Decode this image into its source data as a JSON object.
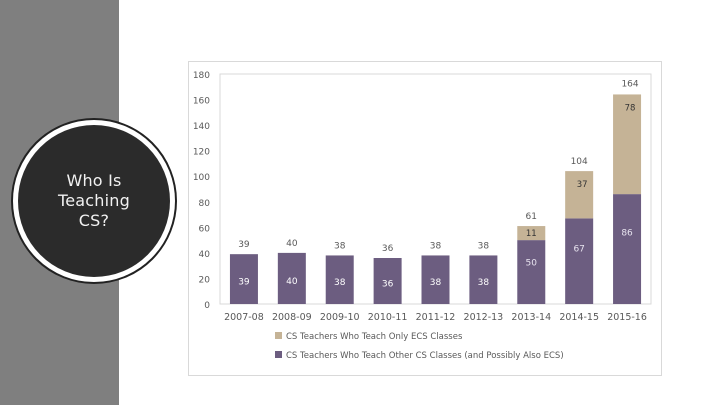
{
  "slide": {
    "title_lines": [
      "Who Is",
      "Teaching",
      "CS?"
    ]
  },
  "colors": {
    "band": "#7f7f7f",
    "circle": "#2b2b2b",
    "ecs_only": "#c5b396",
    "other_cs": "#6c5d80",
    "gridline": "#d9d9d9",
    "label": "#595959"
  },
  "chart_data": {
    "type": "bar",
    "stacked": true,
    "title": "",
    "xlabel": "",
    "ylabel": "",
    "ylim": [
      0,
      180
    ],
    "yticks": [
      0,
      20,
      40,
      60,
      80,
      100,
      120,
      140,
      160,
      180
    ],
    "grid": false,
    "legend_position": "bottom",
    "categories": [
      "2007-08",
      "2008-09",
      "2009-10",
      "2010-11",
      "2011-12",
      "2012-13",
      "2013-14",
      "2014-15",
      "2015-16"
    ],
    "totals": [
      39,
      40,
      38,
      36,
      38,
      38,
      61,
      104,
      164
    ],
    "series": [
      {
        "name": "CS Teachers Who Teach Other CS Classes (and Possibly Also ECS)",
        "values": [
          39,
          40,
          38,
          36,
          38,
          38,
          50,
          67,
          86
        ],
        "color": "#6c5d80"
      },
      {
        "name": "CS Teachers Who Teach Only ECS Classes",
        "values": [
          0,
          0,
          0,
          0,
          0,
          0,
          11,
          37,
          78
        ],
        "color": "#c5b396"
      }
    ],
    "legend_order": [
      1,
      0
    ]
  }
}
